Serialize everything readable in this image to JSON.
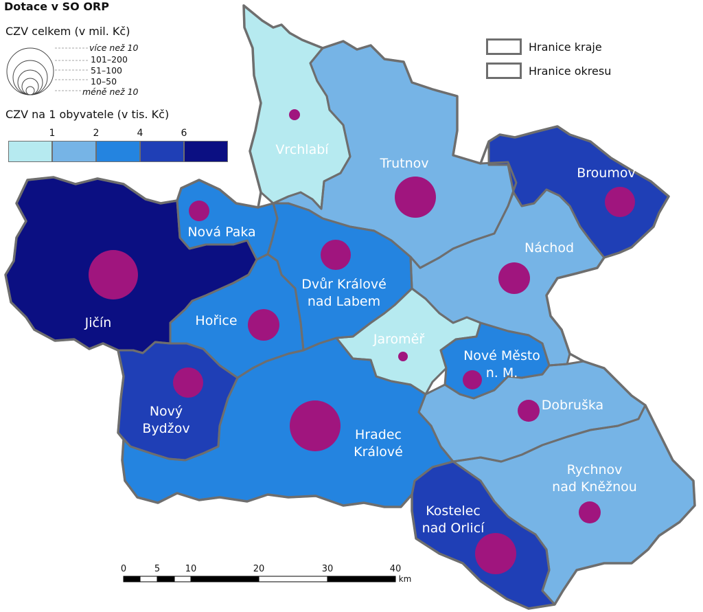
{
  "title": "Dotace v SO ORP",
  "legend": {
    "size_title": "CZV celkem (v mil. Kč)",
    "size_classes": [
      "více než 10",
      "101–200",
      "51–100",
      "10–50",
      "méně než 10"
    ],
    "color_title": "CZV na 1 obyvatele (v tis. Kč)",
    "color_breaks": [
      "1",
      "2",
      "4",
      "6"
    ],
    "color_bins": [
      "#b6eaf0",
      "#76b4e6",
      "#2484e0",
      "#1f3fb6",
      "#0b0f82"
    ],
    "boundaries": [
      "Hranice kraje",
      "Hranice okresu"
    ]
  },
  "regions": [
    {
      "name": "Vrchlabí",
      "lines": [
        "Vrchlabí"
      ],
      "fill": "#b6eaf0"
    },
    {
      "name": "Trutnov",
      "lines": [
        "Trutnov"
      ],
      "fill": "#76b4e6"
    },
    {
      "name": "Broumov",
      "lines": [
        "Broumov"
      ],
      "fill": "#1f3fb6"
    },
    {
      "name": "Náchod",
      "lines": [
        "Náchod"
      ],
      "fill": "#76b4e6"
    },
    {
      "name": "Nová Paka",
      "lines": [
        "Nová Paka"
      ],
      "fill": "#2484e0"
    },
    {
      "name": "Jičín",
      "lines": [
        "Jičín"
      ],
      "fill": "#0b0f82"
    },
    {
      "name": "Hořice",
      "lines": [
        "Hořice"
      ],
      "fill": "#2484e0"
    },
    {
      "name": "Dvůr Králové nad Labem",
      "lines": [
        "Dvůr Králové",
        "nad Labem"
      ],
      "fill": "#2484e0"
    },
    {
      "name": "Jaroměř",
      "lines": [
        "Jaroměř"
      ],
      "fill": "#b6eaf0"
    },
    {
      "name": "Nové Město n. M.",
      "lines": [
        "Nové Město",
        "n. M."
      ],
      "fill": "#2484e0"
    },
    {
      "name": "Nový Bydžov",
      "lines": [
        "Nový",
        "Bydžov"
      ],
      "fill": "#1f3fb6"
    },
    {
      "name": "Hradec Králové",
      "lines": [
        "Hradec",
        "Králové"
      ],
      "fill": "#2484e0"
    },
    {
      "name": "Dobruška",
      "lines": [
        "Dobruška"
      ],
      "fill": "#76b4e6"
    },
    {
      "name": "Rychnov nad Kněžnou",
      "lines": [
        "Rychnov",
        "nad Kněžnou"
      ],
      "fill": "#76b4e6"
    },
    {
      "name": "Kostelec nad Orlicí",
      "lines": [
        "Kostelec",
        "nad Orlicí"
      ],
      "fill": "#1f3fb6"
    }
  ],
  "scalebar": {
    "ticks": [
      "0",
      "5",
      "10",
      "20",
      "30",
      "40"
    ],
    "unit": "km"
  }
}
